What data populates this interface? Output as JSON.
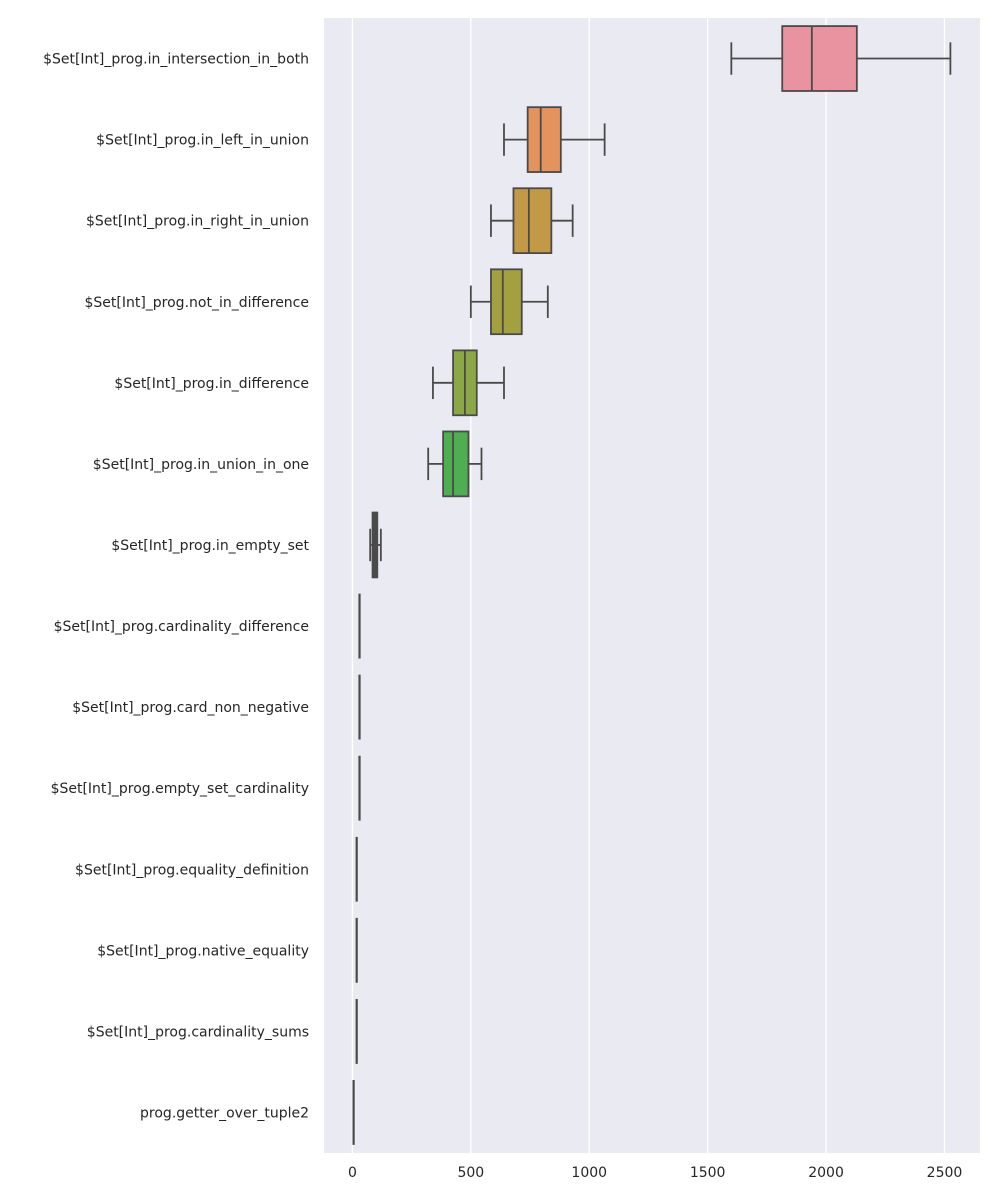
{
  "chart_data": {
    "type": "box",
    "orientation": "horizontal",
    "title": "",
    "xlabel": "",
    "ylabel": "",
    "xlim": [
      -120,
      2650
    ],
    "xticks": [
      0,
      500,
      1000,
      1500,
      2000,
      2500
    ],
    "xtick_labels": [
      "0",
      "500",
      "1000",
      "1500",
      "2000",
      "2500"
    ],
    "grid": true,
    "legend": "none",
    "categories": [
      "$Set[Int]_prog.in_intersection_in_both",
      "$Set[Int]_prog.in_left_in_union",
      "$Set[Int]_prog.in_right_in_union",
      "$Set[Int]_prog.not_in_difference",
      "$Set[Int]_prog.in_difference",
      "$Set[Int]_prog.in_union_in_one",
      "$Set[Int]_prog.in_empty_set",
      "$Set[Int]_prog.cardinality_difference",
      "$Set[Int]_prog.card_non_negative",
      "$Set[Int]_prog.empty_set_cardinality",
      "$Set[Int]_prog.equality_definition",
      "$Set[Int]_prog.native_equality",
      "$Set[Int]_prog.cardinality_sums",
      "prog.getter_over_tuple2"
    ],
    "boxes": [
      {
        "whislo": 1600,
        "q1": 1815,
        "med": 1940,
        "q3": 2130,
        "whishi": 2525,
        "color": "#e8939f"
      },
      {
        "whislo": 640,
        "q1": 740,
        "med": 795,
        "q3": 880,
        "whishi": 1065,
        "color": "#e4935f"
      },
      {
        "whislo": 585,
        "q1": 680,
        "med": 745,
        "q3": 840,
        "whishi": 930,
        "color": "#c29946"
      },
      {
        "whislo": 500,
        "q1": 585,
        "med": 635,
        "q3": 715,
        "whishi": 825,
        "color": "#a3a040"
      },
      {
        "whislo": 340,
        "q1": 425,
        "med": 475,
        "q3": 525,
        "whishi": 640,
        "color": "#8ca846"
      },
      {
        "whislo": 320,
        "q1": 383,
        "med": 425,
        "q3": 490,
        "whishi": 545,
        "color": "#4fae52"
      },
      {
        "whislo": 75,
        "q1": 85,
        "med": 95,
        "q3": 105,
        "whishi": 120,
        "color": "#4a4a4a"
      },
      {
        "whislo": 30,
        "q1": 30,
        "med": 30,
        "q3": 30,
        "whishi": 30,
        "color": "#4a4a4a"
      },
      {
        "whislo": 30,
        "q1": 30,
        "med": 30,
        "q3": 30,
        "whishi": 30,
        "color": "#4a4a4a"
      },
      {
        "whislo": 30,
        "q1": 30,
        "med": 30,
        "q3": 30,
        "whishi": 30,
        "color": "#4a4a4a"
      },
      {
        "whislo": 18,
        "q1": 18,
        "med": 18,
        "q3": 18,
        "whishi": 18,
        "color": "#4a4a4a"
      },
      {
        "whislo": 18,
        "q1": 18,
        "med": 18,
        "q3": 18,
        "whishi": 18,
        "color": "#4a4a4a"
      },
      {
        "whislo": 18,
        "q1": 18,
        "med": 18,
        "q3": 18,
        "whishi": 18,
        "color": "#4a4a4a"
      },
      {
        "whislo": 5,
        "q1": 5,
        "med": 5,
        "q3": 5,
        "whishi": 5,
        "color": "#4a4a4a"
      }
    ],
    "colors": {
      "plot_background": "#eaeaf2",
      "grid": "#ffffff",
      "line": "#4a4a4a",
      "text": "#262626"
    }
  }
}
